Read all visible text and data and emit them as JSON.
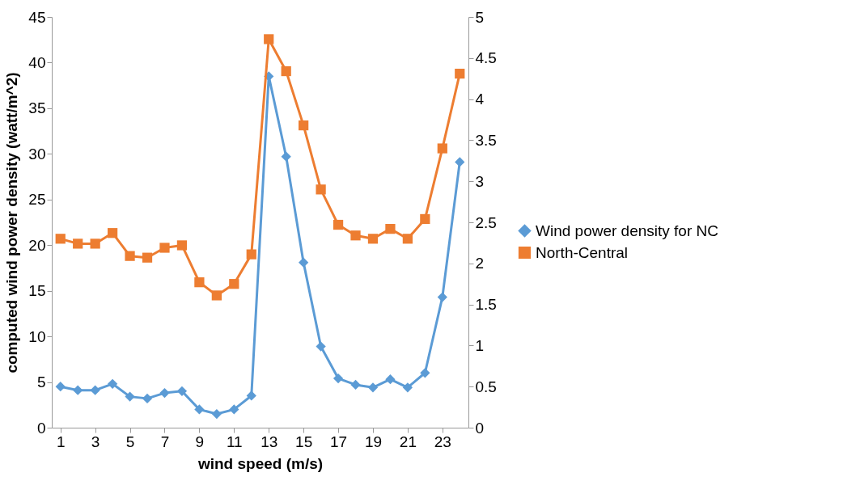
{
  "chart_data": {
    "type": "line",
    "xlabel": "wind speed (m/s)",
    "ylabel": "computed wind power density (watt/m^2)",
    "x": [
      1,
      2,
      3,
      4,
      5,
      6,
      7,
      8,
      9,
      10,
      11,
      12,
      13,
      14,
      15,
      16,
      17,
      18,
      19,
      20,
      21,
      22,
      23,
      24
    ],
    "xlim": [
      0.5,
      24.5
    ],
    "xticks": [
      1,
      3,
      5,
      7,
      9,
      11,
      13,
      15,
      17,
      19,
      21,
      23
    ],
    "series": [
      {
        "name": "Wind power density for NC",
        "color": "#5b9bd5",
        "marker": "diamond",
        "values": [
          4.5,
          4.1,
          4.1,
          4.8,
          3.4,
          3.2,
          3.8,
          4.0,
          2.0,
          1.5,
          2.0,
          3.5,
          38.5,
          29.7,
          18.1,
          8.9,
          5.4,
          4.7,
          4.4,
          5.3,
          4.4,
          6.0,
          14.3,
          29.1
        ]
      },
      {
        "name": "North-Central",
        "color": "#ed7d31",
        "marker": "square",
        "axis": "y2",
        "values": [
          2.3,
          2.24,
          2.24,
          2.37,
          2.09,
          2.07,
          2.19,
          2.22,
          1.77,
          1.61,
          1.75,
          2.11,
          4.73,
          4.34,
          3.68,
          2.9,
          2.47,
          2.34,
          2.3,
          2.42,
          2.3,
          2.54,
          3.4,
          4.31
        ]
      }
    ],
    "ylim": [
      0,
      45
    ],
    "yticks": [
      0,
      5,
      10,
      15,
      20,
      25,
      30,
      35,
      40,
      45
    ],
    "y2lim": [
      0,
      5
    ],
    "y2ticks": [
      0,
      0.5,
      1,
      1.5,
      2,
      2.5,
      3,
      3.5,
      4,
      4.5,
      5
    ],
    "legend": "right",
    "grid": false
  }
}
